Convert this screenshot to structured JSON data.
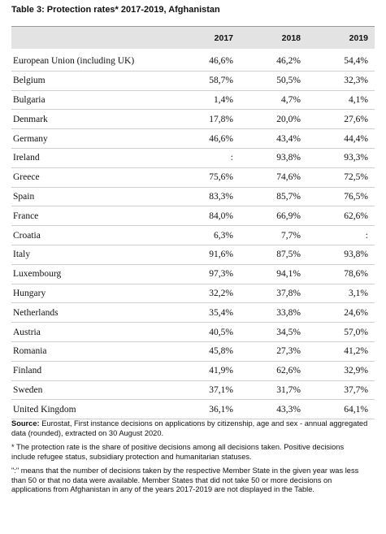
{
  "header": {
    "title": "Table 3: Protection rates* 2017-2019, Afghanistan"
  },
  "table": {
    "columns": [
      "2017",
      "2018",
      "2019"
    ],
    "rows": [
      [
        "European Union (including UK)",
        "46,6%",
        "46,2%",
        "54,4%"
      ],
      [
        "Belgium",
        "58,7%",
        "50,5%",
        "32,3%"
      ],
      [
        "Bulgaria",
        "1,4%",
        "4,7%",
        "4,1%"
      ],
      [
        "Denmark",
        "17,8%",
        "20,0%",
        "27,6%"
      ],
      [
        "Germany",
        "46,6%",
        "43,4%",
        "44,4%"
      ],
      [
        "Ireland",
        ":",
        "93,8%",
        "93,3%"
      ],
      [
        "Greece",
        "75,6%",
        "74,6%",
        "72,5%"
      ],
      [
        "Spain",
        "83,3%",
        "85,7%",
        "76,5%"
      ],
      [
        "France",
        "84,0%",
        "66,9%",
        "62,6%"
      ],
      [
        "Croatia",
        "6,3%",
        "7,7%",
        ":"
      ],
      [
        "Italy",
        "91,6%",
        "87,5%",
        "93,8%"
      ],
      [
        "Luxembourg",
        "97,3%",
        "94,1%",
        "78,6%"
      ],
      [
        "Hungary",
        "32,2%",
        "37,8%",
        "3,1%"
      ],
      [
        "Netherlands",
        "35,4%",
        "33,8%",
        "24,6%"
      ],
      [
        "Austria",
        "40,5%",
        "34,5%",
        "57,0%"
      ],
      [
        "Romania",
        "45,8%",
        "27,3%",
        "41,2%"
      ],
      [
        "Finland",
        "41,9%",
        "62,6%",
        "32,9%"
      ],
      [
        "Sweden",
        "37,1%",
        "31,7%",
        "37,7%"
      ],
      [
        "United Kingdom",
        "36,1%",
        "43,3%",
        "64,1%"
      ]
    ]
  },
  "notes": {
    "source_label": "Source:",
    "source_text": "Eurostat, First instance decisions on applications by citizenship, age and sex - annual aggregated data (rounded), extracted on 30 August 2020.",
    "footnote1": "* The protection rate is the share of positive decisions among all decisions taken. Positive decisions include refugee status, subsidiary protection and humanitarian statuses.",
    "footnote2": "\":\" means that the number of decisions taken by the respective Member State in the given year was less than 50 or that no data were available. Member States that did not take 50 or more decisions on applications from Afghanistan in any of the years 2017-2019 are not displayed in the Table."
  }
}
